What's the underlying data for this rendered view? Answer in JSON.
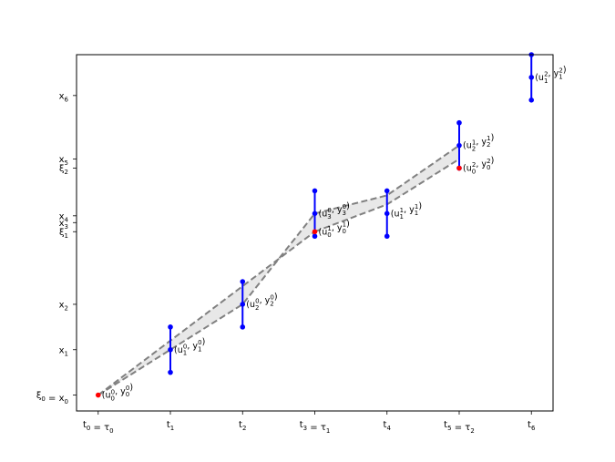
{
  "chart_data": {
    "type": "scatter",
    "title": "",
    "xlabel": "",
    "ylabel": "",
    "xlim": [
      -0.3,
      6.3
    ],
    "ylim": [
      -0.35,
      7.5
    ],
    "grid": false,
    "x_ticks": [
      {
        "value": 0,
        "label": "t_0 = τ_0"
      },
      {
        "value": 1,
        "label": "t_1"
      },
      {
        "value": 2,
        "label": "t_2"
      },
      {
        "value": 3,
        "label": "t_3 = τ_1"
      },
      {
        "value": 4,
        "label": "t_4"
      },
      {
        "value": 5,
        "label": "t_5 = τ_2"
      },
      {
        "value": 6,
        "label": "t_6"
      }
    ],
    "y_ticks": [
      {
        "value": 0,
        "label": "ξ_0 = x_0"
      },
      {
        "value": 1,
        "label": "x_1"
      },
      {
        "value": 2,
        "label": "x_2"
      },
      {
        "value": 3.6,
        "label": "ξ_1"
      },
      {
        "value": 3.8,
        "label": "x_3"
      },
      {
        "value": 3.95,
        "label": "x_4"
      },
      {
        "value": 5.0,
        "label": "ξ_2"
      },
      {
        "value": 5.2,
        "label": "x_5"
      },
      {
        "value": 6.6,
        "label": "x_6"
      }
    ],
    "intervals": [
      {
        "x": 1,
        "center": 1.0,
        "low": 0.5,
        "high": 1.5
      },
      {
        "x": 2,
        "center": 2.0,
        "low": 1.5,
        "high": 2.5
      },
      {
        "x": 3,
        "center": 4.0,
        "low": 3.5,
        "high": 4.5
      },
      {
        "x": 4,
        "center": 4.0,
        "low": 3.5,
        "high": 4.5
      },
      {
        "x": 5,
        "center": 5.5,
        "low": 5.0,
        "high": 6.0
      },
      {
        "x": 6,
        "center": 7.0,
        "low": 6.5,
        "high": 7.5
      }
    ],
    "red_points": [
      {
        "x": 0,
        "y": 0.0
      },
      {
        "x": 3,
        "y": 3.6
      },
      {
        "x": 5,
        "y": 5.0
      }
    ],
    "dashed_lines": [
      {
        "x": [
          0,
          1,
          2,
          3
        ],
        "y": [
          0.0,
          1.2,
          2.4,
          3.6
        ]
      },
      {
        "x": [
          0,
          1,
          2,
          3
        ],
        "y": [
          0.0,
          1.0,
          2.0,
          4.0
        ]
      },
      {
        "x": [
          3,
          4,
          5
        ],
        "y": [
          3.6,
          4.2,
          5.2
        ]
      },
      {
        "x": [
          3,
          4,
          5
        ],
        "y": [
          4.0,
          4.4,
          5.5
        ]
      }
    ],
    "point_labels": [
      {
        "x": 0,
        "y": 0.0,
        "label": "(u_0^0, y_0^0)"
      },
      {
        "x": 1,
        "y": 1.0,
        "label": "(u_1^0, y_1^0)"
      },
      {
        "x": 2,
        "y": 2.0,
        "label": "(u_2^0, y_2^0)"
      },
      {
        "x": 3,
        "y": 4.0,
        "label": "(u_3^0, y_3^0)"
      },
      {
        "x": 3,
        "y": 3.6,
        "label": "(u_0^1, y_0^1)"
      },
      {
        "x": 4,
        "y": 4.0,
        "label": "(u_1^1, y_1^1)"
      },
      {
        "x": 5,
        "y": 5.5,
        "label": "(u_2^1, y_2^1)"
      },
      {
        "x": 5,
        "y": 5.0,
        "label": "(u_0^2, y_0^2)"
      },
      {
        "x": 6,
        "y": 7.0,
        "label": "(u_1^2, y_1^2)"
      }
    ],
    "colors": {
      "interval": "#0000ff",
      "red_point": "#ff0000",
      "dashed": "#808080",
      "fill": "#e8e8e8"
    }
  }
}
